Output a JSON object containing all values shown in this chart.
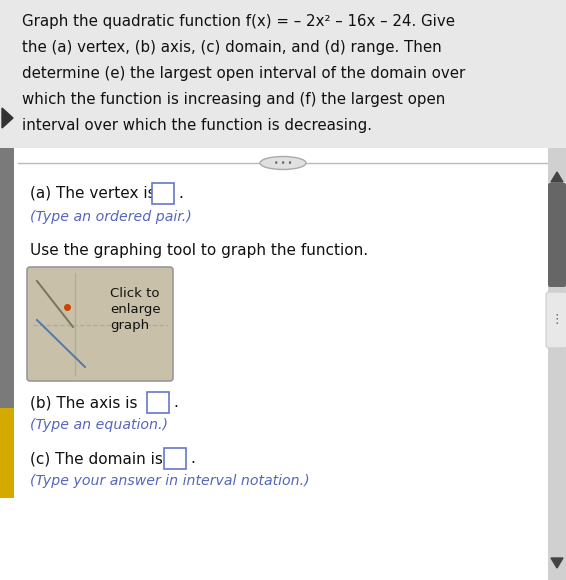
{
  "bg_color": "#e8e8e8",
  "title_bg": "#e8e8e8",
  "content_bg": "#f0f0f0",
  "white_bg": "#ffffff",
  "divider_color": "#bbbbbb",
  "text_color": "#111111",
  "orange_text": "#7755aa",
  "subtext_color": "#6644aa",
  "left_bar_dark": "#888888",
  "left_bar_yellow": "#d4aa00",
  "scrollbar_bg": "#d0d0d0",
  "scrollbar_thumb": "#666666",
  "graph_bg": "#c8c0a8",
  "graph_border": "#999999",
  "graph_axis_color": "#aaaaaa",
  "graph_xline_color": "#999999",
  "graph_cross1_color": "#888866",
  "graph_cross2_color": "#6688aa",
  "graph_dot_color": "#cc4400",
  "ellipse_bg": "#e0e0e0",
  "ellipse_border": "#aaaaaa",
  "input_border": "#6677cc",
  "title_lines": [
    "Graph the quadratic function f(x) = – 2x² – 16x – 24. Give",
    "the (a) vertex, (b) axis, (c) domain, and (d) range. Then",
    "determine (e) the largest open interval of the domain over",
    "which the function is increasing and (f) the largest open",
    "interval over which the function is decreasing."
  ],
  "part_a_text": "(a) The vertex is",
  "part_a_sub": "(Type an ordered pair.)",
  "part_use": "Use the graphing tool to graph the function.",
  "part_b_text": "(b) The axis is",
  "part_b_sub": "(Type an equation.)",
  "part_c_text": "(c) The domain is",
  "part_c_sub": "(Type your answer in interval notation.)"
}
